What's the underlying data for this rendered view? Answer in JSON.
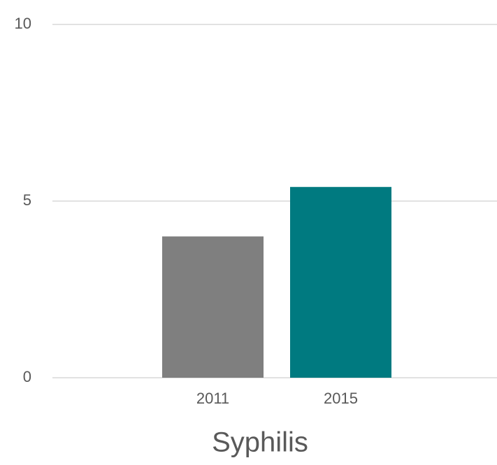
{
  "chart_data": {
    "type": "bar",
    "title": "Syphilis",
    "categories": [
      "2011",
      "2015"
    ],
    "values": [
      4.0,
      5.4
    ],
    "colors": [
      "#7f7f7f",
      "#007a80"
    ],
    "ylim": [
      0,
      10
    ],
    "yticks": [
      0,
      5,
      10
    ],
    "grid": true
  }
}
